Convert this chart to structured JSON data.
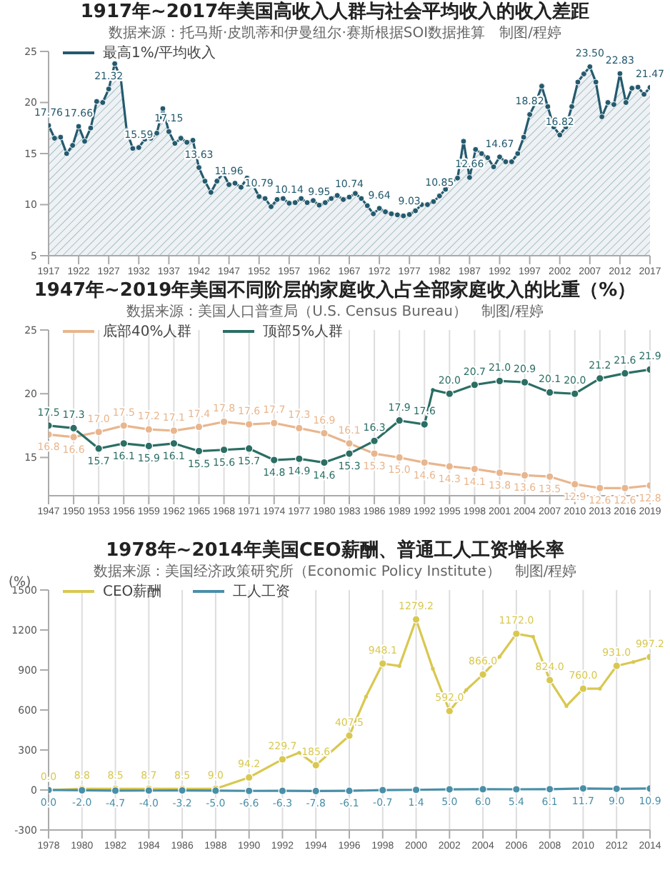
{
  "chart_data": [
    {
      "type": "area",
      "title": "1917年~2017年美国高收入人群与社会平均收入的收入差距",
      "subtitle": "数据来源：托马斯·皮凯蒂和伊曼纽尔·赛斯根据SOI数据推算　制图/程婷",
      "legend": "top left",
      "marker": "circle",
      "xlim": [
        1917,
        2017
      ],
      "xticks": [
        1917,
        1922,
        1927,
        1932,
        1937,
        1942,
        1947,
        1952,
        1957,
        1962,
        1967,
        1972,
        1977,
        1982,
        1987,
        1992,
        1997,
        2002,
        2007,
        2012,
        2017
      ],
      "ylim": [
        5,
        25
      ],
      "yticks": [
        5,
        10,
        15,
        20,
        25
      ],
      "x": [
        1917,
        1918,
        1919,
        1920,
        1921,
        1922,
        1923,
        1924,
        1925,
        1926,
        1927,
        1928,
        1929,
        1930,
        1931,
        1932,
        1933,
        1934,
        1935,
        1936,
        1937,
        1938,
        1939,
        1940,
        1941,
        1942,
        1943,
        1944,
        1945,
        1946,
        1947,
        1948,
        1949,
        1950,
        1951,
        1952,
        1953,
        1954,
        1955,
        1956,
        1957,
        1958,
        1959,
        1960,
        1961,
        1962,
        1963,
        1964,
        1965,
        1966,
        1967,
        1968,
        1969,
        1970,
        1971,
        1972,
        1973,
        1974,
        1975,
        1976,
        1977,
        1978,
        1979,
        1980,
        1981,
        1982,
        1983,
        1984,
        1985,
        1986,
        1987,
        1988,
        1989,
        1990,
        1991,
        1992,
        1993,
        1994,
        1995,
        1996,
        1997,
        1998,
        1999,
        2000,
        2001,
        2002,
        2003,
        2004,
        2005,
        2006,
        2007,
        2008,
        2009,
        2010,
        2011,
        2012,
        2013,
        2014,
        2015,
        2016,
        2017
      ],
      "series": [
        {
          "name": "最高1%/平均收入",
          "color": "#245a6e",
          "values": [
            17.76,
            16.5,
            16.6,
            15.0,
            15.8,
            17.66,
            16.2,
            17.5,
            20.1,
            20.0,
            21.32,
            23.8,
            22.4,
            17.2,
            15.5,
            15.59,
            16.4,
            16.5,
            17.0,
            19.4,
            17.15,
            16.0,
            16.5,
            16.1,
            16.3,
            13.63,
            12.3,
            11.2,
            12.3,
            13.1,
            11.96,
            12.1,
            11.7,
            12.6,
            11.9,
            10.79,
            10.6,
            9.8,
            10.5,
            10.6,
            10.14,
            10.2,
            10.6,
            10.2,
            10.4,
            9.95,
            10.2,
            10.6,
            10.9,
            10.5,
            10.74,
            11.1,
            10.6,
            9.9,
            9.1,
            9.64,
            9.3,
            9.1,
            9.0,
            8.9,
            9.03,
            9.4,
            10.0,
            10.0,
            10.3,
            10.85,
            11.5,
            12.2,
            12.6,
            16.2,
            12.66,
            15.4,
            15.0,
            14.6,
            13.7,
            14.67,
            14.2,
            14.2,
            15.0,
            16.6,
            18.82,
            20.0,
            21.6,
            19.6,
            17.6,
            16.82,
            17.6,
            19.6,
            22.0,
            22.8,
            23.5,
            22.0,
            18.6,
            20.0,
            19.8,
            22.83,
            20.0,
            21.4,
            21.5,
            20.8,
            21.47
          ],
          "value_labels": [
            "17.76",
            null,
            null,
            null,
            null,
            "17.66",
            null,
            null,
            null,
            null,
            "21.32",
            null,
            null,
            null,
            null,
            "15.59",
            null,
            null,
            null,
            null,
            "17.15",
            null,
            null,
            null,
            null,
            "13.63",
            null,
            null,
            null,
            null,
            "11.96",
            null,
            null,
            null,
            null,
            "10.79",
            null,
            null,
            null,
            null,
            "10.14",
            null,
            null,
            null,
            null,
            "9.95",
            null,
            null,
            null,
            null,
            "10.74",
            null,
            null,
            null,
            null,
            "9.64",
            null,
            null,
            null,
            null,
            "9.03",
            null,
            null,
            null,
            null,
            "10.85",
            null,
            null,
            null,
            null,
            "12.66",
            null,
            null,
            null,
            null,
            "14.67",
            null,
            null,
            null,
            null,
            "18.82",
            null,
            null,
            null,
            null,
            "16.82",
            null,
            null,
            null,
            null,
            "23.50",
            null,
            null,
            null,
            null,
            "22.83",
            null,
            null,
            null,
            null,
            "21.47"
          ]
        }
      ]
    },
    {
      "type": "line",
      "title": "1947年~2019年美国不同阶层的家庭收入占全部家庭收入的比重（%）",
      "subtitle": "数据来源：美国人口普查局（U.S. Census Bureau）　制图/程婷",
      "legend": "top left",
      "marker": "circle",
      "grid": "x",
      "xlim": [
        1947,
        2019
      ],
      "xticks": [
        1947,
        1950,
        1953,
        1956,
        1959,
        1962,
        1965,
        1968,
        1971,
        1974,
        1977,
        1980,
        1983,
        1986,
        1989,
        1992,
        1995,
        1998,
        2001,
        2004,
        2007,
        2010,
        2013,
        2016,
        2019
      ],
      "ylim": [
        12,
        25
      ],
      "yticks": [
        15,
        20,
        25
      ],
      "series": [
        {
          "name": "底部40%人群",
          "color": "#e8b68e",
          "x": [
            1947,
            1950,
            1953,
            1956,
            1959,
            1962,
            1965,
            1968,
            1971,
            1974,
            1977,
            1980,
            1983,
            1986,
            1989,
            1992,
            1995,
            1998,
            2001,
            2004,
            2007,
            2010,
            2013,
            2016,
            2019
          ],
          "values": [
            16.8,
            16.6,
            17.0,
            17.5,
            17.2,
            17.1,
            17.4,
            17.8,
            17.6,
            17.7,
            17.3,
            16.9,
            16.1,
            15.3,
            15.0,
            14.6,
            14.3,
            14.1,
            13.8,
            13.6,
            13.5,
            12.9,
            12.6,
            12.6,
            12.8
          ],
          "value_labels": [
            "16.8",
            "16.6",
            "17.0",
            "17.5",
            "17.2",
            "17.1",
            "17.4",
            "17.8",
            "17.6",
            "17.7",
            "17.3",
            "16.9",
            "16.1",
            "15.3",
            "15.0",
            "14.6",
            "14.3",
            "14.1",
            "13.8",
            "13.6",
            "13.5",
            "12.9",
            "12.6",
            "12.6",
            "12.8"
          ]
        },
        {
          "name": "顶部5%人群",
          "color": "#2b6e64",
          "x": [
            1947,
            1950,
            1953,
            1956,
            1959,
            1962,
            1965,
            1968,
            1971,
            1974,
            1977,
            1980,
            1983,
            1986,
            1989,
            1992,
            1993,
            1995,
            1998,
            2001,
            2004,
            2007,
            2010,
            2013,
            2016,
            2019
          ],
          "values": [
            17.5,
            17.3,
            15.7,
            16.1,
            15.9,
            16.1,
            15.5,
            15.6,
            15.7,
            14.8,
            14.9,
            14.6,
            15.3,
            16.3,
            17.9,
            17.6,
            20.3,
            20.0,
            20.7,
            21.0,
            20.9,
            20.1,
            20.0,
            21.2,
            21.6,
            21.9
          ],
          "value_labels": [
            "17.5",
            "17.3",
            "15.7",
            "16.1",
            "15.9",
            "16.1",
            "15.5",
            "15.6",
            "15.7",
            "14.8",
            "14.9",
            "14.6",
            "15.3",
            "16.3",
            "17.9",
            "17.6",
            null,
            "20.0",
            "20.7",
            "21.0",
            "20.9",
            "20.1",
            "20.0",
            "21.2",
            "21.6",
            "21.9"
          ]
        }
      ]
    },
    {
      "type": "line",
      "title": "1978年~2014年美国CEO薪酬、普通工人工资增长率",
      "subtitle": "数据来源：美国经济政策研究所（Economic Policy Institute）　制图/程婷",
      "ylabel": "(%)",
      "legend": "top left",
      "marker": "circle",
      "grid": "x",
      "xlim": [
        1978,
        2014
      ],
      "xticks": [
        1978,
        1980,
        1982,
        1984,
        1986,
        1988,
        1990,
        1992,
        1994,
        1996,
        1998,
        2000,
        2002,
        2004,
        2006,
        2008,
        2010,
        2012,
        2014
      ],
      "ylim": [
        -300,
        1500
      ],
      "yticks": [
        -300,
        0,
        300,
        600,
        900,
        1200,
        1500
      ],
      "series": [
        {
          "name": "CEO薪酬",
          "color": "#d8c850",
          "x": [
            1978,
            1980,
            1982,
            1984,
            1986,
            1988,
            1990,
            1992,
            1993,
            1994,
            1996,
            1997,
            1998,
            1999,
            2000,
            2001,
            2002,
            2003,
            2004,
            2005,
            2006,
            2007,
            2008,
            2009,
            2010,
            2011,
            2012,
            2013,
            2014
          ],
          "values": [
            0,
            8.8,
            8.5,
            8.7,
            8.5,
            9.0,
            94.2,
            229.7,
            280,
            185.6,
            407.5,
            700,
            948.1,
            930,
            1279.2,
            910,
            592,
            750,
            866,
            1000,
            1172,
            1150,
            824,
            630,
            760,
            760,
            931,
            960,
            997.2
          ],
          "value_labels": [
            "0.0",
            "8.8",
            "8.5",
            "8.7",
            "8.5",
            "9.0",
            "94.2",
            "229.7",
            null,
            "185.6",
            "407.5",
            null,
            "948.1",
            null,
            "1279.2",
            null,
            "592.0",
            null,
            "866.0",
            null,
            "1172.0",
            null,
            "824.0",
            null,
            "760.0",
            null,
            "931.0",
            null,
            "997.2"
          ]
        },
        {
          "name": "工人工资",
          "color": "#4a8fa8",
          "x": [
            1978,
            1980,
            1982,
            1984,
            1986,
            1988,
            1990,
            1992,
            1994,
            1996,
            1998,
            2000,
            2002,
            2004,
            2006,
            2008,
            2010,
            2012,
            2014
          ],
          "values": [
            0,
            -2.0,
            -4.7,
            -4.0,
            -3.2,
            -5.0,
            -6.6,
            -6.3,
            -7.8,
            -6.1,
            -0.7,
            1.4,
            5.0,
            6.0,
            5.4,
            6.1,
            11.7,
            9.0,
            10.9
          ],
          "value_labels": [
            "0.0",
            "-2.0",
            "-4.7",
            "-4.0",
            "-3.2",
            "-5.0",
            "-6.6",
            "-6.3",
            "-7.8",
            "-6.1",
            "-0.7",
            "1.4",
            "5.0",
            "6.0",
            "5.4",
            "6.1",
            "11.7",
            "9.0",
            "10.9"
          ]
        }
      ]
    }
  ]
}
